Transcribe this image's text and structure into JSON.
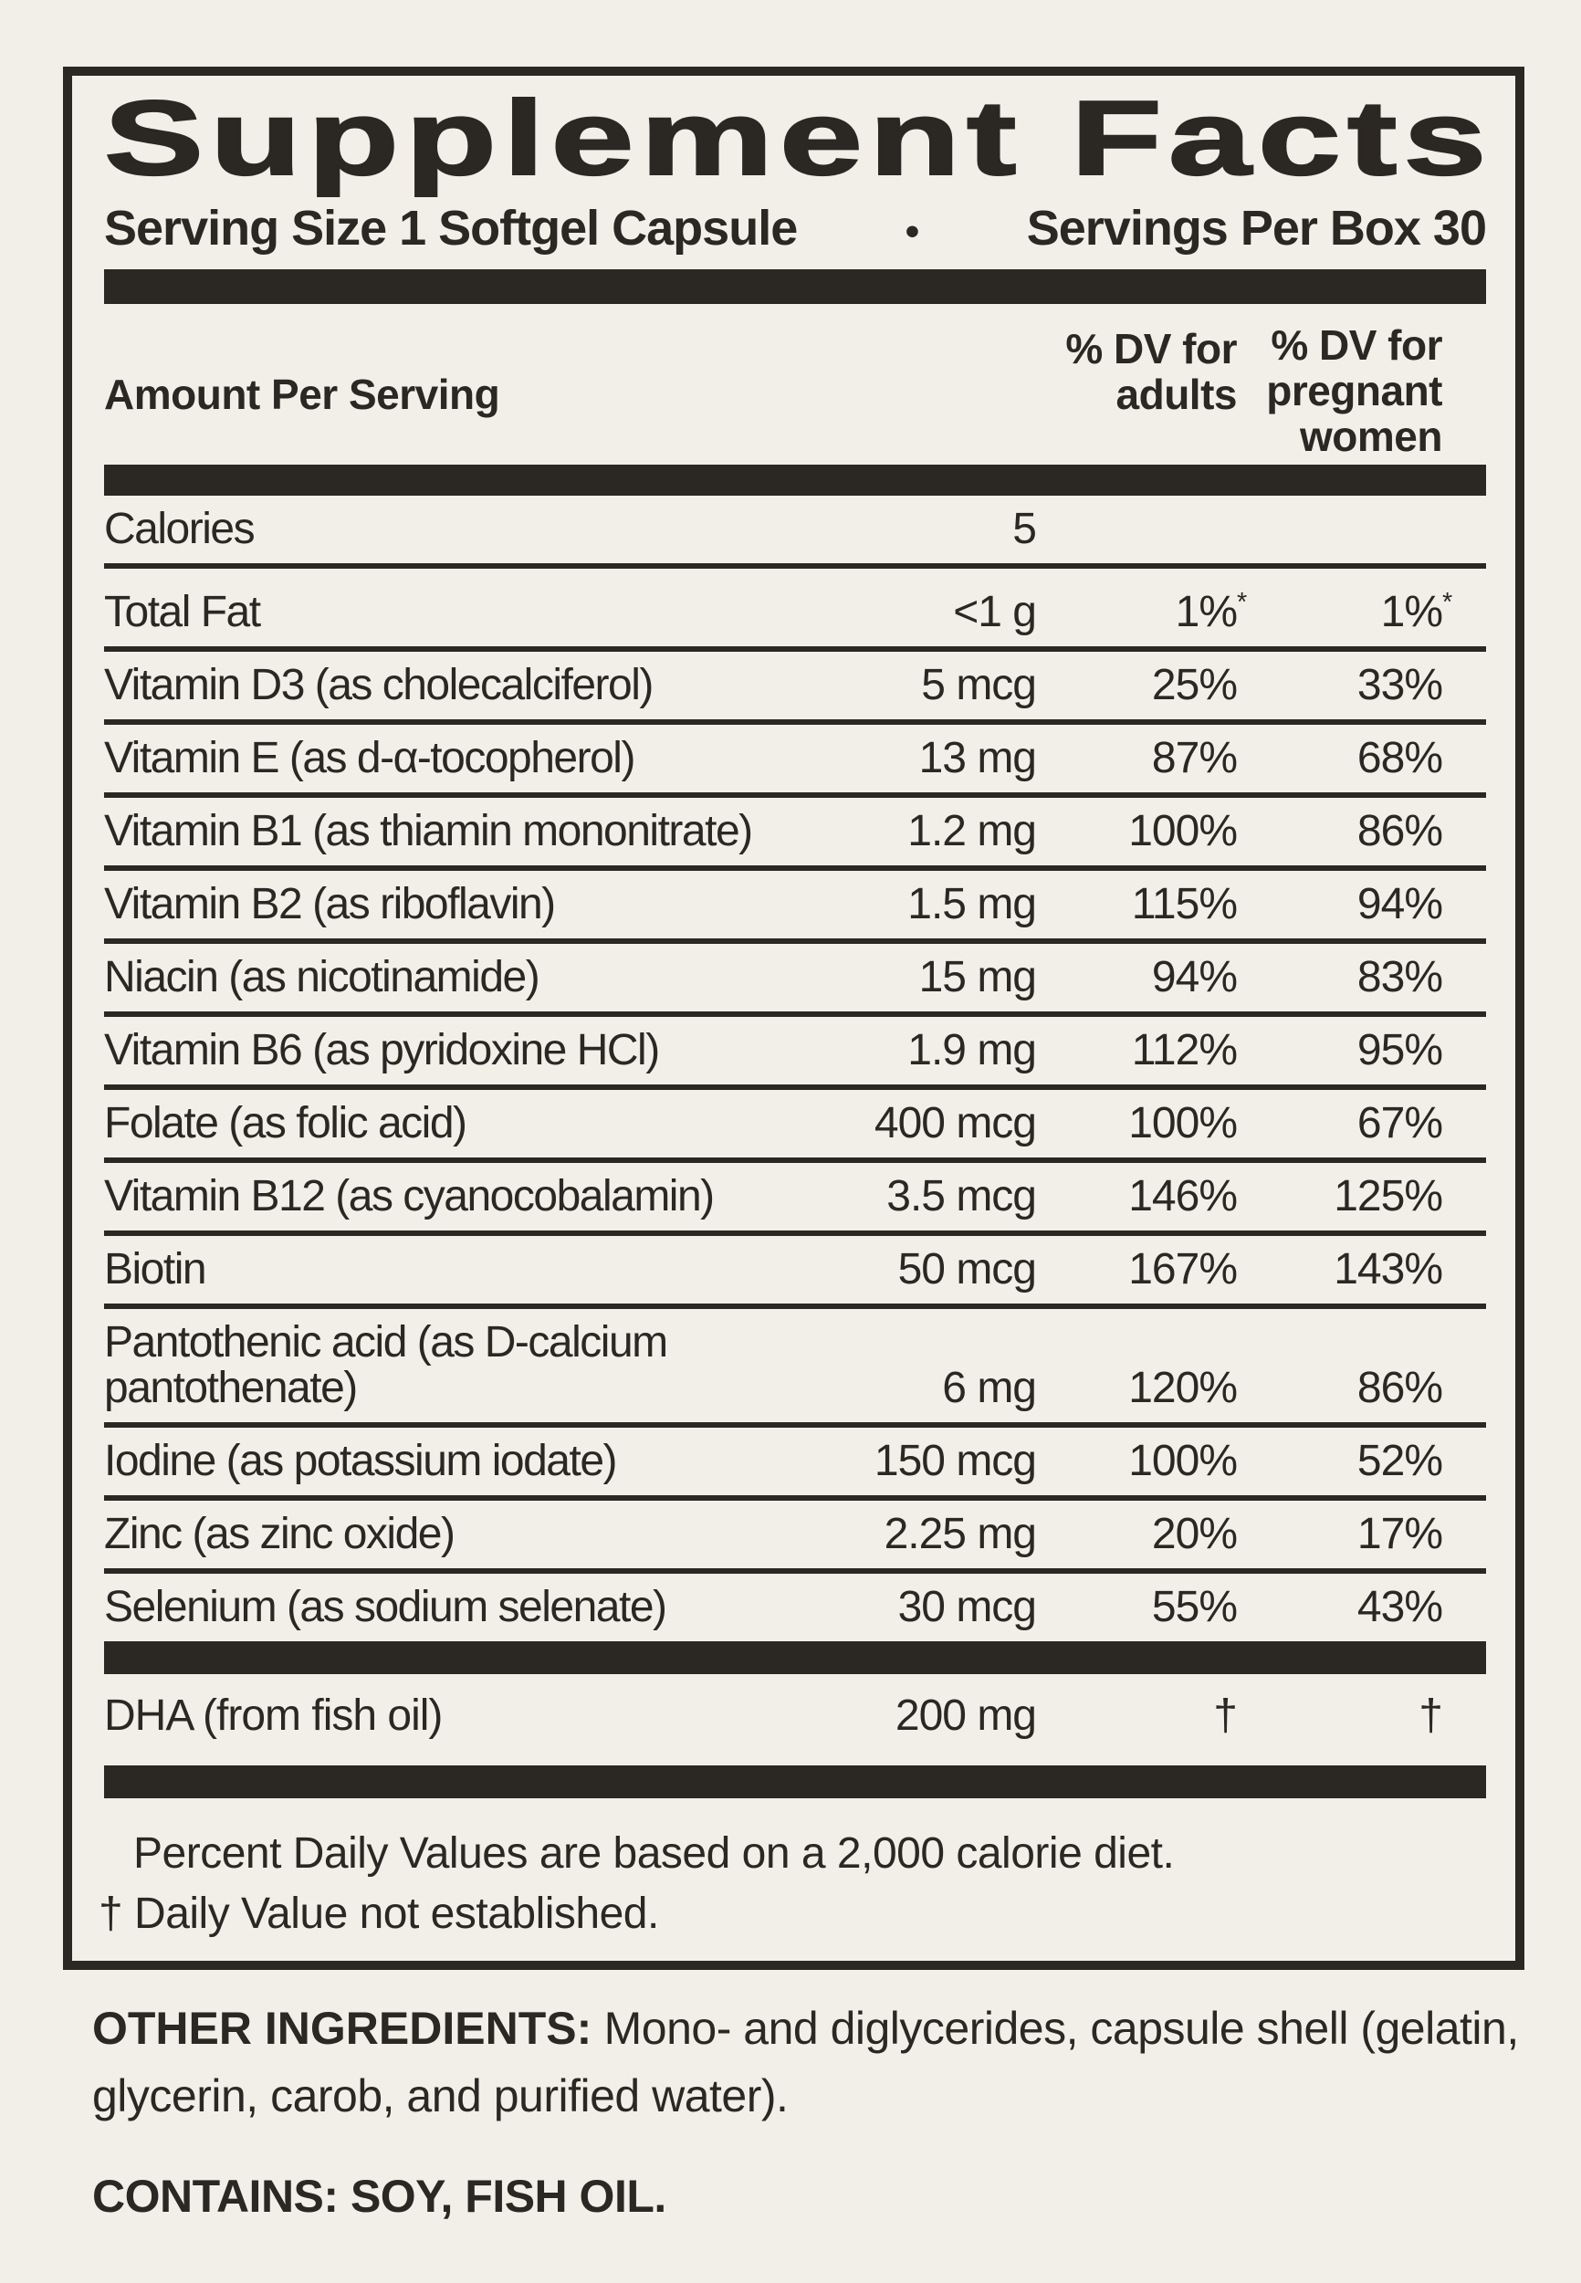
{
  "colors": {
    "ink": "#2b2723",
    "background": "#f2efe9"
  },
  "label": {
    "title": "Supplement Facts",
    "serving_size": "Serving Size 1 Softgel Capsule",
    "bullet": "•",
    "servings_per_box": "Servings Per Box 30",
    "columns": {
      "amount": "Amount Per Serving",
      "adults_line1": "% DV for",
      "adults_line2": "adults",
      "pregnant_line1": "% DV for",
      "pregnant_line2": "pregnant",
      "pregnant_line3": "women"
    },
    "rows": [
      {
        "name": "Calories",
        "amount": "5",
        "adults": "",
        "pregnant": ""
      },
      {
        "name": "Total Fat",
        "amount": "<1 g",
        "adults": "1%",
        "adults_note": "*",
        "pregnant": "1%",
        "pregnant_note": "*"
      },
      {
        "name": "Vitamin D3 (as cholecalciferol)",
        "amount": "5 mcg",
        "adults": "25%",
        "pregnant": "33%"
      },
      {
        "name": "Vitamin E (as d-α-tocopherol)",
        "amount": "13 mg",
        "adults": "87%",
        "pregnant": "68%"
      },
      {
        "name": "Vitamin B1 (as thiamin mononitrate)",
        "amount": "1.2 mg",
        "adults": "100%",
        "pregnant": "86%"
      },
      {
        "name": "Vitamin B2 (as riboflavin)",
        "amount": "1.5 mg",
        "adults": "115%",
        "pregnant": "94%"
      },
      {
        "name": "Niacin (as nicotinamide)",
        "amount": "15 mg",
        "adults": "94%",
        "pregnant": "83%"
      },
      {
        "name": "Vitamin B6 (as pyridoxine HCl)",
        "amount": "1.9 mg",
        "adults": "112%",
        "pregnant": "95%"
      },
      {
        "name": "Folate (as folic acid)",
        "amount": "400 mcg",
        "adults": "100%",
        "pregnant": "67%"
      },
      {
        "name": "Vitamin B12 (as cyanocobalamin)",
        "amount": "3.5 mcg",
        "adults": "146%",
        "pregnant": "125%"
      },
      {
        "name": "Biotin",
        "amount": "50 mcg",
        "adults": "167%",
        "pregnant": "143%"
      },
      {
        "name": "Pantothenic acid (as D-calcium pantothenate)",
        "amount": "6 mg",
        "adults": "120%",
        "pregnant": "86%"
      },
      {
        "name": "Iodine (as potassium iodate)",
        "amount": "150 mcg",
        "adults": "100%",
        "pregnant": "52%"
      },
      {
        "name": "Zinc (as zinc oxide)",
        "amount": "2.25 mg",
        "adults": "20%",
        "pregnant": "17%"
      },
      {
        "name": "Selenium (as sodium selenate)",
        "amount": "30 mcg",
        "adults": "55%",
        "pregnant": "43%"
      }
    ],
    "dha": {
      "name": "DHA (from fish oil)",
      "amount": "200 mg",
      "adults": "†",
      "pregnant": "†"
    },
    "footnotes": [
      "Percent Daily Values are based on a 2,000 calorie diet.",
      "† Daily Value not established."
    ]
  },
  "other_ingredients": {
    "heading": "OTHER INGREDIENTS:",
    "text": "Mono- and diglycerides, capsule shell (gelatin, glycerin, carob, and purified water)."
  },
  "contains": {
    "text": "CONTAINS: SOY, FISH OIL."
  }
}
